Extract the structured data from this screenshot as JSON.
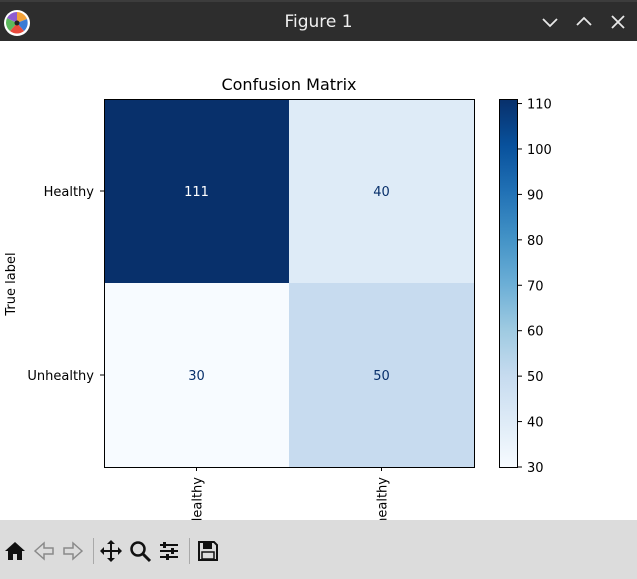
{
  "window": {
    "title": "Figure 1",
    "icons": [
      "app-icon",
      "minimize-icon",
      "maximize-icon",
      "close-icon"
    ]
  },
  "chart_data": {
    "type": "heatmap",
    "title": "Confusion Matrix",
    "ylabel": "True label",
    "xlabel": "",
    "row_labels": [
      "Healthy",
      "Unhealthy"
    ],
    "col_labels": [
      "Healthy",
      "Unhealthy"
    ],
    "values": [
      [
        111,
        40
      ],
      [
        30,
        50
      ]
    ],
    "colormap": "Blues",
    "colorbar": {
      "ticks": [
        30,
        40,
        50,
        60,
        70,
        80,
        90,
        100,
        110
      ],
      "range": [
        30,
        111
      ]
    },
    "colors": {
      "high": "#08306b",
      "low": "#f7fbff",
      "text_on_dark": "#ffffff",
      "text_on_light": "#08306b"
    }
  },
  "toolbar": {
    "icons": [
      "home-icon",
      "back-icon",
      "forward-icon",
      "pan-icon",
      "zoom-icon",
      "configure-icon",
      "save-icon"
    ]
  }
}
